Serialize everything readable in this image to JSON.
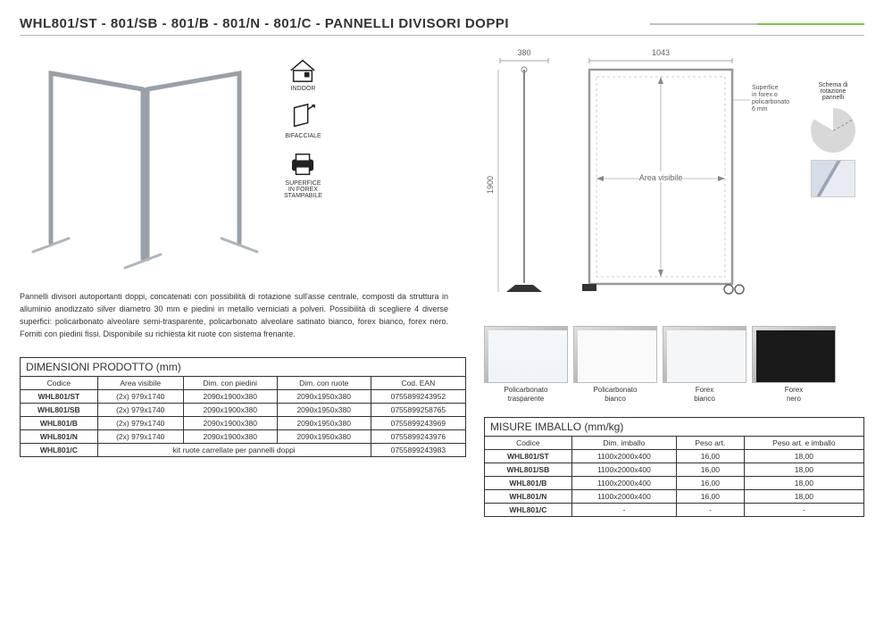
{
  "title": "WHL801/ST - 801/SB - 801/B - 801/N - 801/C - PANNELLI DIVISORI DOPPI",
  "icons": {
    "indoor": "INDOOR",
    "bifacciale": "BIFACCIALE",
    "superfice": "SUPERFICE\nIN FOREX\nSTAMPABILE"
  },
  "description": "Pannelli divisori autoportanti doppi, concatenati con possibilità di rotazione sull'asse centrale, composti da struttura in alluminio anodizzato silver diametro 30 mm e piedini in metallo verniciati a polveri. Possibilità di scegliere 4 diverse superfici: policarbonato alveolare semi-trasparente, policarbonato alveolare satinato bianco, forex bianco, forex nero. Forniti con piedini fissi. Disponibile su richiesta kit ruote con sistema frenante.",
  "dimensions": {
    "side_w": "380",
    "front_w": "1043",
    "height": "1900",
    "area_visibile": "Area visibile",
    "superfice_note": "Superfice\nin forex o\npolicarbonato\n6 mm",
    "schema_label": "Schema di\nrotazione\npannelli"
  },
  "swatches": [
    {
      "label": "Policarbonato\ntrasparente",
      "class": "sw-trans"
    },
    {
      "label": "Policarbonato\nbianco",
      "class": "sw-white"
    },
    {
      "label": "Forex\nbianco",
      "class": "sw-fwhite"
    },
    {
      "label": "Forex\nnero",
      "class": "sw-black"
    }
  ],
  "table1": {
    "title": "DIMENSIONI PRODOTTO (mm)",
    "headers": [
      "Codice",
      "Area visibile",
      "Dim. con piedini",
      "Dim. con ruote",
      "Cod. EAN"
    ],
    "rows": [
      [
        "WHL801/ST",
        "(2x) 979x1740",
        "2090x1900x380",
        "2090x1950x380",
        "0755899243952"
      ],
      [
        "WHL801/SB",
        "(2x) 979x1740",
        "2090x1900x380",
        "2090x1950x380",
        "0755899258765"
      ],
      [
        "WHL801/B",
        "(2x) 979x1740",
        "2090x1900x380",
        "2090x1950x380",
        "0755899243969"
      ],
      [
        "WHL801/N",
        "(2x) 979x1740",
        "2090x1900x380",
        "2090x1950x380",
        "0755899243976"
      ]
    ],
    "kitrow": {
      "code": "WHL801/C",
      "text": "kit ruote carrellate per pannelli doppi",
      "ean": "0755899243983"
    }
  },
  "table2": {
    "title": "MISURE IMBALLO (mm/kg)",
    "headers": [
      "Codice",
      "Dim. imballo",
      "Peso art.",
      "Peso art. e imballo"
    ],
    "rows": [
      [
        "WHL801/ST",
        "1100x2000x400",
        "16,00",
        "18,00"
      ],
      [
        "WHL801/SB",
        "1100x2000x400",
        "16,00",
        "18,00"
      ],
      [
        "WHL801/B",
        "1100x2000x400",
        "16,00",
        "18,00"
      ],
      [
        "WHL801/N",
        "1100x2000x400",
        "16,00",
        "18,00"
      ],
      [
        "WHL801/C",
        "-",
        "-",
        "-"
      ]
    ]
  }
}
